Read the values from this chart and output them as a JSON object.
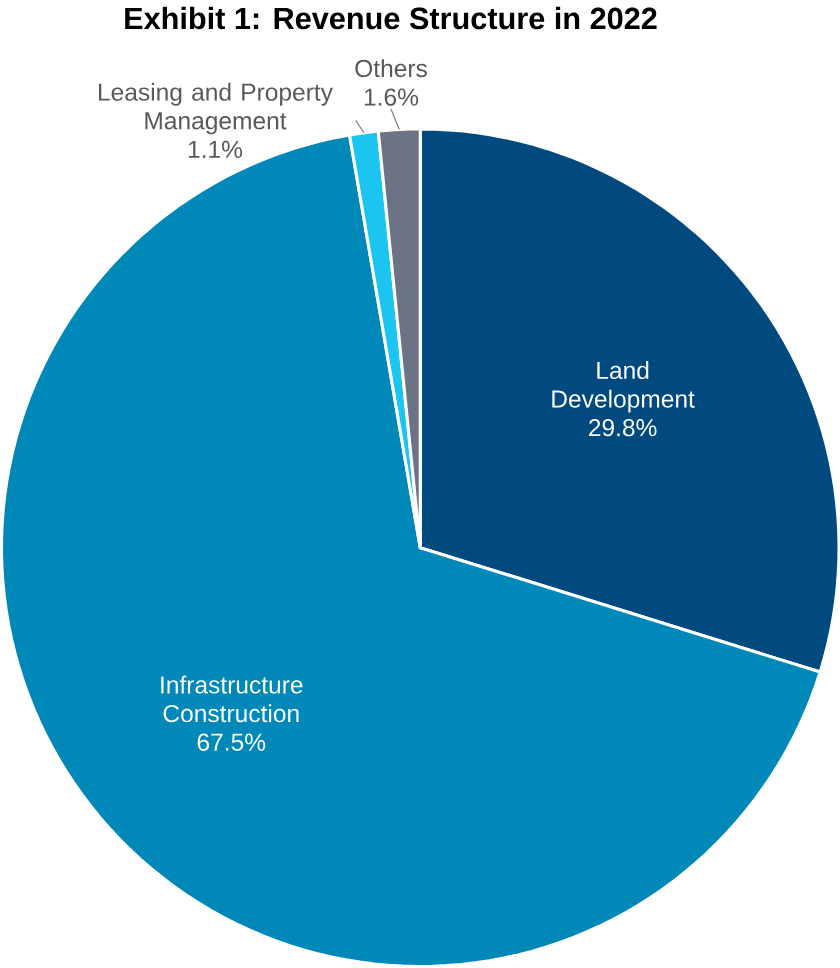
{
  "chart_data": {
    "type": "pie",
    "title": "Exhibit 1: Revenue Structure in 2022",
    "categories": [
      "Land Development",
      "Infrastructure Construction",
      "Leasing and Property Management",
      "Others"
    ],
    "values": [
      29.8,
      67.5,
      1.1,
      1.6
    ],
    "value_labels": [
      "29.8%",
      "67.5%",
      "1.1%",
      "1.6%"
    ],
    "colors": [
      "#004a80",
      "#0088b8",
      "#1cc4f0",
      "#6b7385"
    ]
  }
}
